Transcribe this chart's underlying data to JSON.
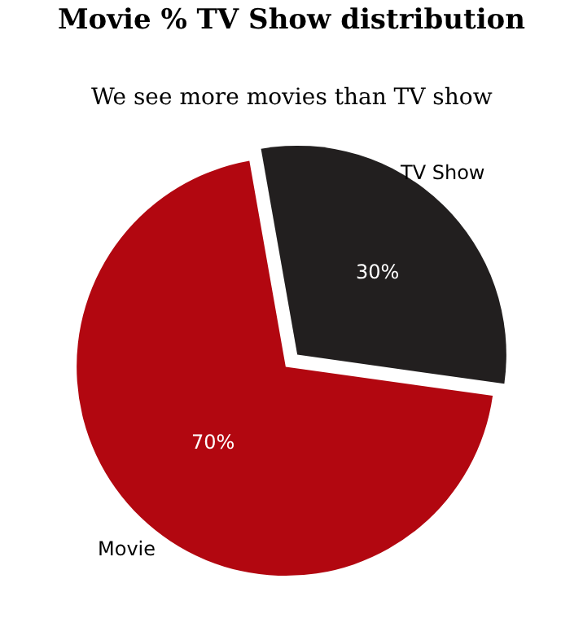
{
  "chart_data": {
    "type": "pie",
    "title": "Movie % TV Show distribution",
    "subtitle": "We see more movies than TV show",
    "categories": [
      "Movie",
      "TV Show"
    ],
    "values": [
      70,
      30
    ],
    "value_labels": [
      "70%",
      "30%"
    ],
    "colors": [
      "#b20710",
      "#221f1f"
    ],
    "legend": false
  }
}
